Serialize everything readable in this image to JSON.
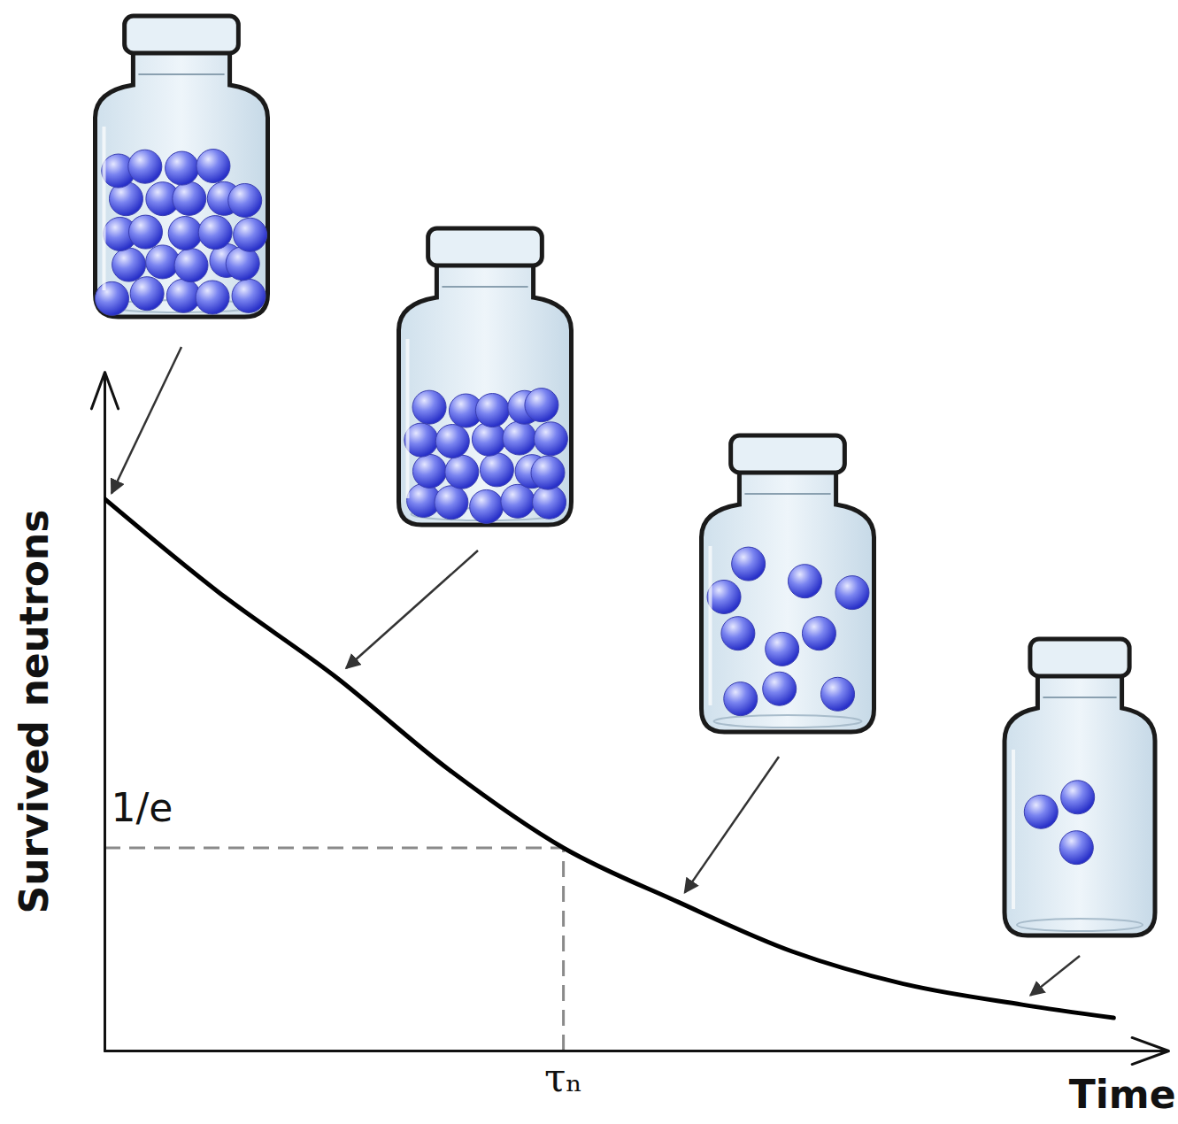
{
  "chart_data": {
    "type": "line",
    "x": [
      0,
      0.25,
      0.5,
      0.75,
      1,
      1.25,
      1.5,
      1.75,
      2,
      2.2
    ],
    "values": [
      1,
      0.83,
      0.68,
      0.51,
      0.368,
      0.27,
      0.18,
      0.12,
      0.084,
      0.06
    ],
    "color": "#000000",
    "xlabel": "Time",
    "ylabel": "Survived neutrons",
    "xlim": [
      0,
      2.32
    ],
    "ylim": [
      0,
      1.23
    ],
    "xticks": [
      {
        "value": 1,
        "label": "τₙ"
      }
    ],
    "yticks": [
      {
        "value": 0.368,
        "label": "1/e"
      }
    ],
    "grid": false,
    "line_style": "solid"
  }
}
